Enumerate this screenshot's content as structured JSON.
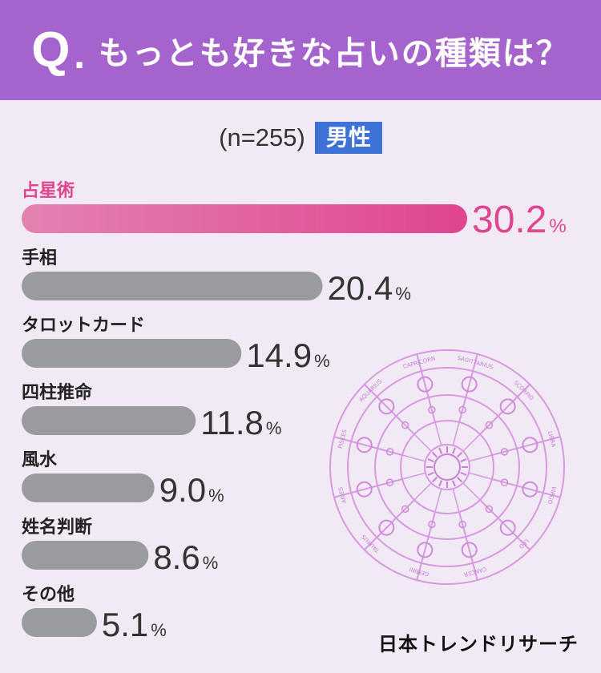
{
  "header": {
    "q_mark": "Q",
    "q_dot": ".",
    "title": "もっとも好きな占いの種類は？"
  },
  "sample_label": "(n=255)",
  "gender_badge": "男性",
  "colors": {
    "header_bg": "#a563cd",
    "highlight": "#e0458f",
    "bar_gray": "#9a9b9f",
    "badge_blue": "#3f72d6"
  },
  "wheel_labels": [
    "CAPRICORN",
    "SAGITTARIUS",
    "SCORPIO",
    "LIBRA",
    "VIRGO",
    "LEO",
    "CANCER",
    "GEMINI",
    "TAURUS",
    "ARIES",
    "PISCES",
    "AQUARIUS"
  ],
  "logo_text": "日本トレンドリサーチ",
  "chart_data": {
    "type": "bar",
    "orientation": "horizontal",
    "title": "もっとも好きな占いの種類は？",
    "categories": [
      "占星術",
      "手相",
      "タロットカード",
      "四柱推命",
      "風水",
      "姓名判断",
      "その他"
    ],
    "values": [
      30.2,
      20.4,
      14.9,
      11.8,
      9.0,
      8.6,
      5.1
    ],
    "value_labels": [
      "30.2",
      "20.4",
      "14.9",
      "11.8",
      "9.0",
      "8.6",
      "5.1"
    ],
    "unit": "%",
    "highlight_index": 0
  }
}
